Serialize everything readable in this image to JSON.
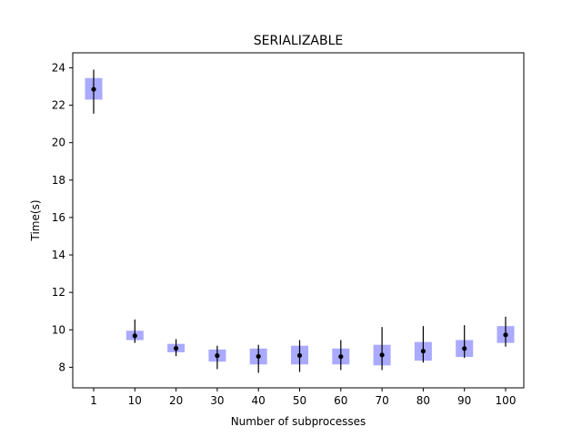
{
  "chart_data": {
    "type": "scatter",
    "title": "SERIALIZABLE",
    "xlabel": "Number of subprocesses",
    "ylabel": "Time(s)",
    "categories": [
      "1",
      "10",
      "20",
      "30",
      "40",
      "50",
      "60",
      "70",
      "80",
      "90",
      "100"
    ],
    "yticks": [
      "8",
      "10",
      "12",
      "14",
      "16",
      "18",
      "20",
      "22",
      "24"
    ],
    "ylim": [
      6.9,
      24.8
    ],
    "grid": false,
    "colors": {
      "box": "#aaaaff",
      "errorbar": "#000000",
      "point": "#000000"
    },
    "series": [
      {
        "mean": [
          22.85,
          9.68,
          9.01,
          8.62,
          8.58,
          8.63,
          8.57,
          8.66,
          8.86,
          9.0,
          9.73
        ],
        "box_low": [
          22.3,
          9.45,
          8.8,
          8.3,
          8.15,
          8.15,
          8.15,
          8.1,
          8.35,
          8.55,
          9.3
        ],
        "box_high": [
          23.45,
          9.95,
          9.25,
          8.95,
          9.0,
          9.15,
          9.0,
          9.2,
          9.35,
          9.45,
          10.2
        ],
        "err_low": [
          21.55,
          9.3,
          8.6,
          7.9,
          7.7,
          7.75,
          7.85,
          7.85,
          8.25,
          8.5,
          9.1
        ],
        "err_high": [
          23.9,
          10.55,
          9.5,
          9.15,
          9.2,
          9.45,
          9.45,
          10.15,
          10.2,
          10.25,
          10.7
        ]
      }
    ]
  }
}
